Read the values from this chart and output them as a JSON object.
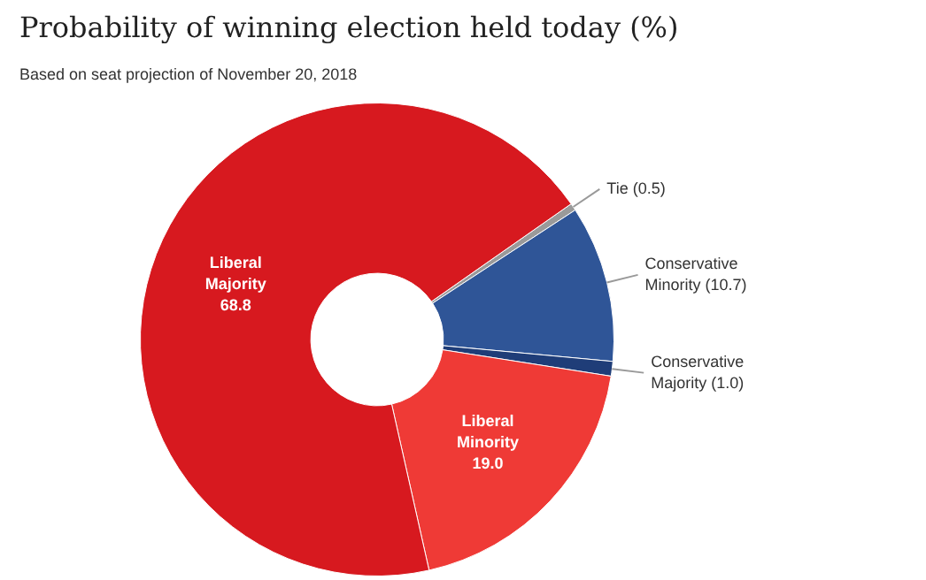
{
  "chart_data": {
    "type": "donut",
    "title": "Probability of winning election held today (%)",
    "subtitle": "Based on seat projection of November 20, 2018",
    "categories": [
      "Tie",
      "Conservative Minority",
      "Conservative Majority",
      "Liberal Minority",
      "Liberal Majority"
    ],
    "values": [
      0.5,
      10.7,
      1.0,
      19.0,
      68.8
    ],
    "colors": [
      "#9a9a9a",
      "#2f5597",
      "#1f3d78",
      "#ef3a36",
      "#d7191f"
    ],
    "value_labels": [
      "(0.5)",
      "(10.7)",
      "(1.0)",
      "19.0",
      "68.8"
    ],
    "legend": false
  }
}
